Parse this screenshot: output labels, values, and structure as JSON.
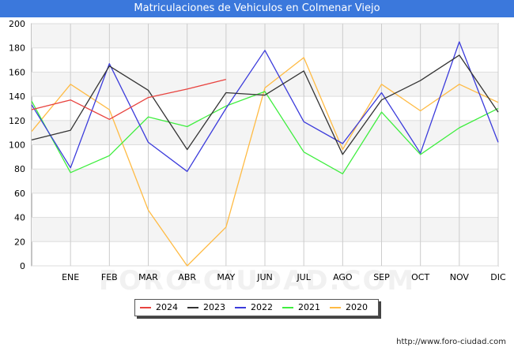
{
  "chart_data": {
    "type": "line",
    "title": "Matriculaciones de Vehiculos en Colmenar Viejo",
    "categories": [
      "",
      "ENE",
      "FEB",
      "MAR",
      "ABR",
      "MAY",
      "JUN",
      "JUL",
      "AGO",
      "SEP",
      "OCT",
      "NOV",
      "DIC"
    ],
    "ylim": [
      0,
      200
    ],
    "yticks": [
      0,
      20,
      40,
      60,
      80,
      100,
      120,
      140,
      160,
      180,
      200
    ],
    "grid": true,
    "legend_position": "bottom",
    "series": [
      {
        "name": "2024",
        "color": "#e8433f",
        "values": [
          129,
          137,
          121,
          139,
          146,
          154,
          null,
          null,
          null,
          null,
          null,
          null,
          null
        ]
      },
      {
        "name": "2023",
        "color": "#333333",
        "values": [
          104,
          112,
          165,
          145,
          96,
          143,
          141,
          161,
          92,
          137,
          153,
          174,
          127
        ]
      },
      {
        "name": "2022",
        "color": "#3b3bdb",
        "values": [
          133,
          81,
          167,
          102,
          78,
          130,
          178,
          119,
          101,
          143,
          93,
          185,
          102
        ]
      },
      {
        "name": "2021",
        "color": "#3fee3f",
        "values": [
          136,
          77,
          91,
          123,
          115,
          132,
          144,
          94,
          76,
          127,
          92,
          114,
          130
        ]
      },
      {
        "name": "2020",
        "color": "#ffbb44",
        "values": [
          111,
          150,
          129,
          46,
          0,
          32,
          147,
          172,
          96,
          150,
          128,
          150,
          135
        ]
      }
    ]
  },
  "watermark": "FORO-CIUDAD.COM",
  "source_url": "http://www.foro-ciudad.com"
}
